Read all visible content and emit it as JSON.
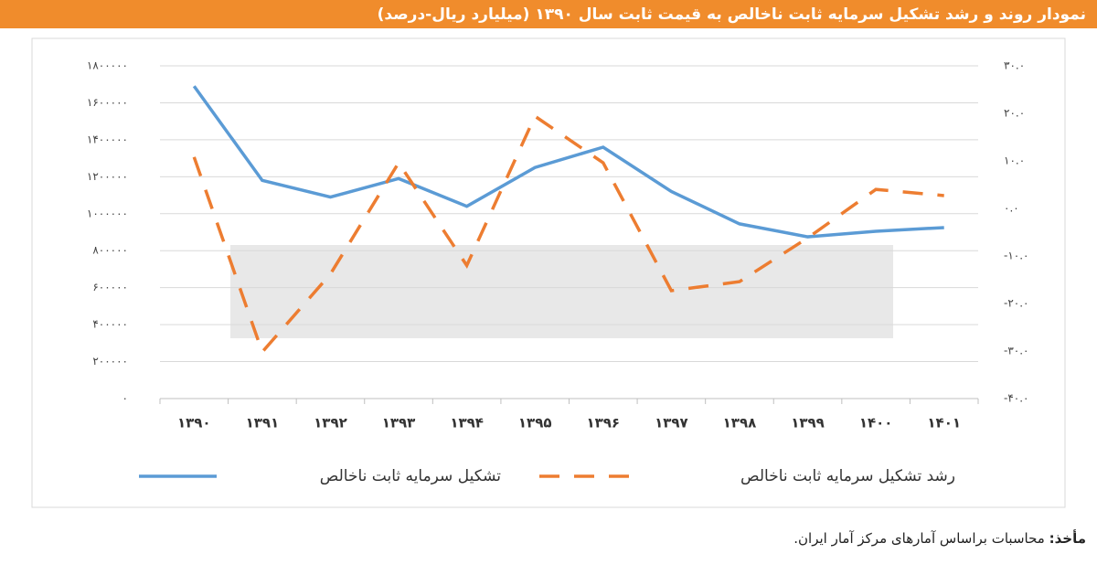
{
  "chart_data": {
    "type": "line",
    "title": "نمودار روند و رشد تشکیل سرمایه ثابت ناخالص به قیمت ثابت سال ۱۳۹۰ (میلیارد ریال-درصد)",
    "categories": [
      "۱۳۹۰",
      "۱۳۹۱",
      "۱۳۹۲",
      "۱۳۹۳",
      "۱۳۹۴",
      "۱۳۹۵",
      "۱۳۹۶",
      "۱۳۹۷",
      "۱۳۹۸",
      "۱۳۹۹",
      "۱۴۰۰",
      "۱۴۰۱"
    ],
    "series": [
      {
        "name": "تشکیل سرمایه ثابت ناخالص",
        "color": "#5b9bd5",
        "line_style": "solid",
        "values": [
          1690000,
          1180000,
          1090000,
          1190000,
          1040000,
          1250000,
          1360000,
          1120000,
          945000,
          875000,
          905000,
          925000
        ]
      },
      {
        "name": "رشد تشکیل سرمایه ثابت ناخالص",
        "color": "#ed7d31",
        "line_style": "dashed",
        "axis": "y2",
        "values": [
          10.8,
          -30.2,
          -13.8,
          9.6,
          -12,
          19.4,
          9.6,
          -17.3,
          -15.4,
          -6.2,
          4.0,
          2.7
        ]
      }
    ],
    "ylim": [
      0,
      1800000
    ],
    "yticks": [
      {
        "value": 0,
        "label": "۰"
      },
      {
        "value": 200000,
        "label": "۲۰۰۰۰۰"
      },
      {
        "value": 400000,
        "label": "۴۰۰۰۰۰"
      },
      {
        "value": 600000,
        "label": "۶۰۰۰۰۰"
      },
      {
        "value": 800000,
        "label": "۸۰۰۰۰۰"
      },
      {
        "value": 1000000,
        "label": "۱۰۰۰۰۰۰"
      },
      {
        "value": 1200000,
        "label": "۱۲۰۰۰۰۰"
      },
      {
        "value": 1400000,
        "label": "۱۴۰۰۰۰۰"
      },
      {
        "value": 1600000,
        "label": "۱۶۰۰۰۰۰"
      },
      {
        "value": 1800000,
        "label": "۱۸۰۰۰۰۰"
      }
    ],
    "y2lim": [
      -40,
      30
    ],
    "y2ticks": [
      {
        "value": -40,
        "label": "-۴۰.۰"
      },
      {
        "value": -30,
        "label": "-۳۰.۰"
      },
      {
        "value": -20,
        "label": "-۲۰.۰"
      },
      {
        "value": -10,
        "label": "-۱۰.۰"
      },
      {
        "value": 0,
        "label": "۰.۰"
      },
      {
        "value": 10,
        "label": "۱۰.۰"
      },
      {
        "value": 20,
        "label": "۲۰.۰"
      },
      {
        "value": 30,
        "label": "۳۰.۰"
      }
    ],
    "grid": true,
    "legend": "bottom"
  },
  "footer": {
    "source_label": "مأخذ:",
    "source_text": "محاسبات براساس آمارهای مرکز آمار ایران."
  }
}
